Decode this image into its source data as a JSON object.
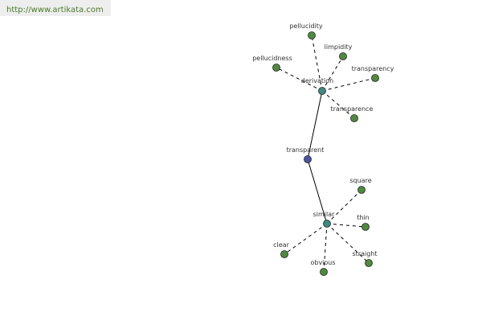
{
  "header": {
    "url": "http://www.artikata.com"
  },
  "nodes": [
    {
      "label": "transparent"
    },
    {
      "label": "derivation"
    },
    {
      "label": "similar"
    },
    {
      "label": "pellucidity"
    },
    {
      "label": "limpidity"
    },
    {
      "label": "pellucidness"
    },
    {
      "label": "transparency"
    },
    {
      "label": "transparence"
    },
    {
      "label": "square"
    },
    {
      "label": "thin"
    },
    {
      "label": "clear"
    },
    {
      "label": "obvious"
    },
    {
      "label": "straight"
    }
  ]
}
